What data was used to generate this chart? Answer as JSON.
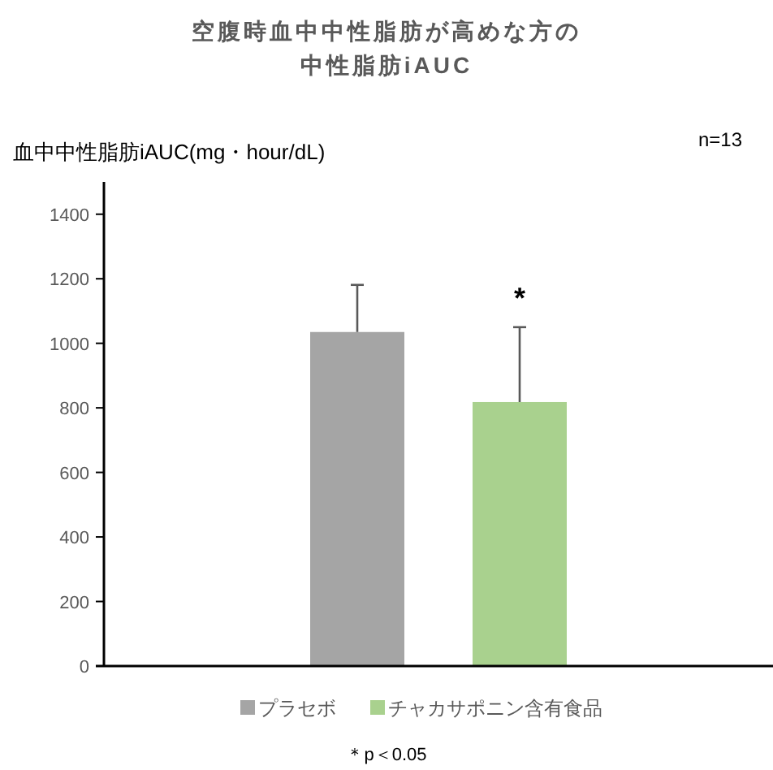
{
  "chart_data": {
    "type": "bar",
    "title": "空腹時血中中性脂肪が高めな方の",
    "subtitle": "中性脂肪iAUC",
    "ylabel": "血中中性脂肪iAUC(mg・hour/dL)",
    "categories": [
      null
    ],
    "series": [
      {
        "name": "プラセボ",
        "color": "#a5a5a5",
        "values": [
          1035
        ],
        "errors": [
          146
        ]
      },
      {
        "name": "チャカサポニン含有食品",
        "color": "#a9d18e",
        "values": [
          818
        ],
        "errors": [
          232
        ]
      }
    ],
    "ylim": [
      0,
      1500
    ],
    "yticks": [
      0,
      200,
      400,
      600,
      800,
      1000,
      1200,
      1400
    ],
    "grid": false,
    "legend": "bottom",
    "annotations": [
      "n=13",
      "*",
      "＊p＜0.05"
    ]
  }
}
